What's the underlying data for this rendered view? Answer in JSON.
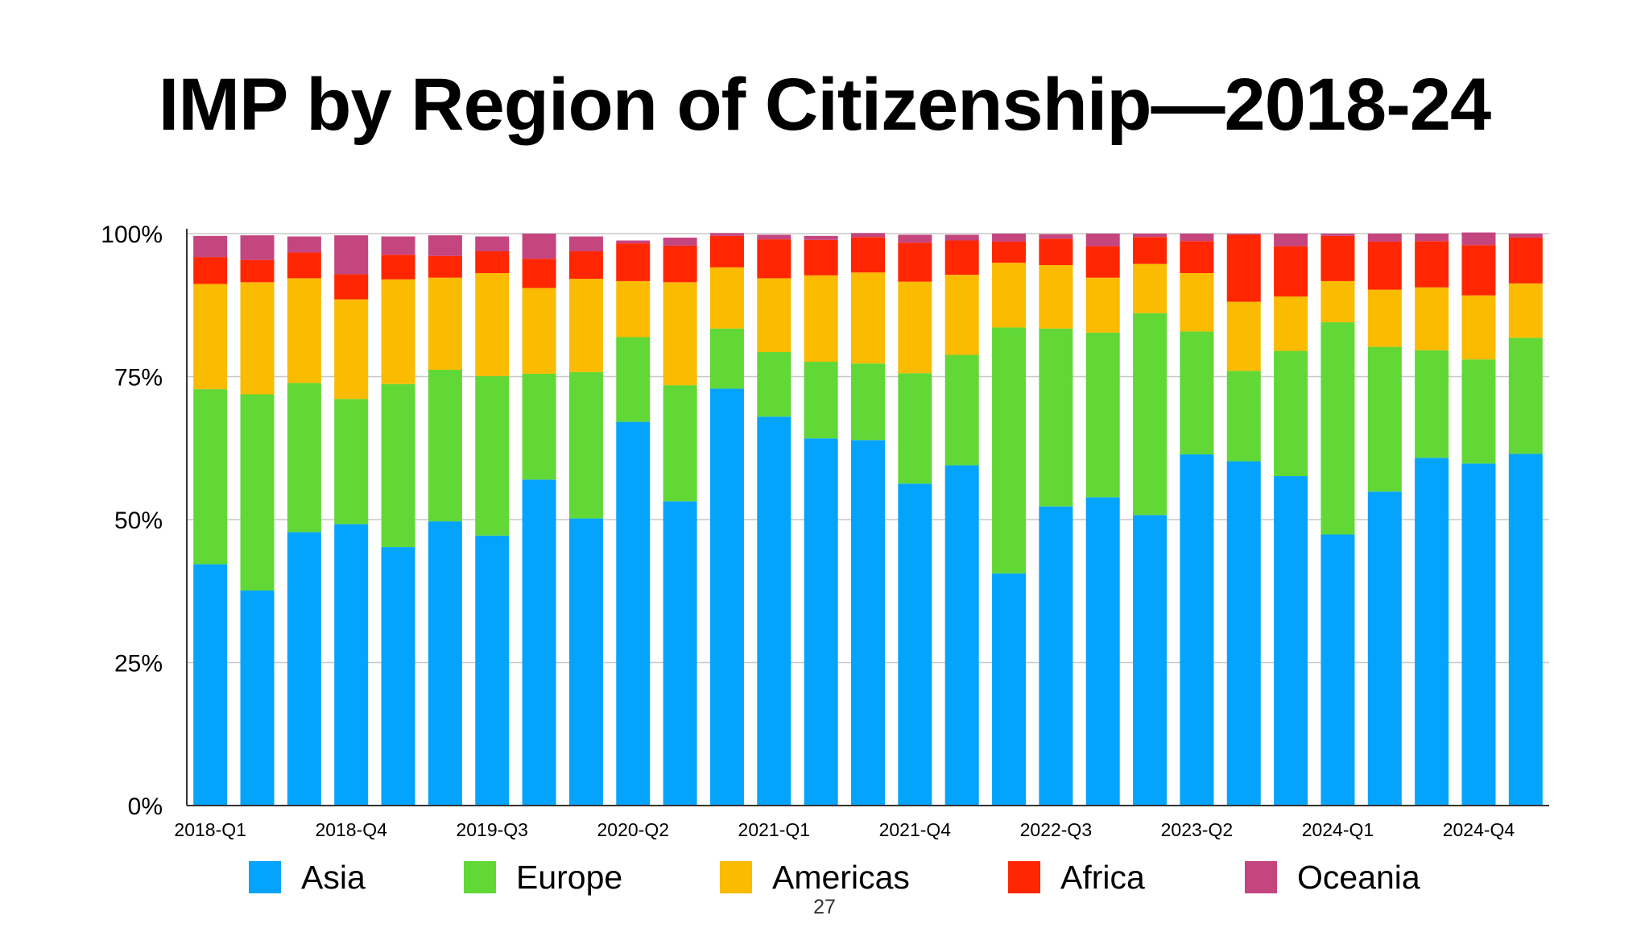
{
  "slide": {
    "title": "IMP by Region of Citizenship—2018-24",
    "page_number": "27"
  },
  "chart_data": {
    "type": "bar",
    "stacked": true,
    "title": "IMP by Region of Citizenship—2018-24",
    "xlabel": "",
    "ylabel": "",
    "ylim": [
      0,
      100
    ],
    "y_ticks": [
      "0%",
      "25%",
      "50%",
      "75%",
      "100%"
    ],
    "grid": true,
    "legend_position": "bottom",
    "categories": [
      "2018-Q1",
      "2018-Q2",
      "2018-Q3",
      "2018-Q4",
      "2019-Q1",
      "2019-Q2",
      "2019-Q3",
      "2019-Q4",
      "2020-Q1",
      "2020-Q2",
      "2020-Q3",
      "2020-Q4",
      "2021-Q1",
      "2021-Q2",
      "2021-Q3",
      "2021-Q4",
      "2022-Q1",
      "2022-Q2",
      "2022-Q3",
      "2022-Q4",
      "2023-Q1",
      "2023-Q2",
      "2023-Q3",
      "2023-Q4",
      "2024-Q1",
      "2024-Q2",
      "2024-Q3",
      "2024-Q4",
      "2025-Q1"
    ],
    "x_tick_labels": [
      "2018-Q1",
      "2018-Q4",
      "2019-Q3",
      "2020-Q2",
      "2021-Q1",
      "2021-Q4",
      "2022-Q3",
      "2023-Q2",
      "2024-Q1",
      "2024-Q4"
    ],
    "series": [
      {
        "name": "Asia",
        "color": "#05A4FC",
        "values": [
          42.2,
          37.6,
          47.8,
          49.2,
          45.2,
          49.7,
          47.2,
          57.0,
          50.2,
          67.1,
          53.2,
          72.9,
          68.0,
          64.2,
          63.9,
          56.3,
          59.5,
          40.6,
          52.3,
          53.9,
          50.8,
          61.4,
          60.2,
          57.6,
          47.4,
          54.9,
          60.8,
          59.8,
          61.5
        ]
      },
      {
        "name": "Europe",
        "color": "#62D836",
        "values": [
          30.6,
          34.3,
          26.1,
          21.9,
          28.5,
          26.5,
          27.9,
          18.5,
          25.6,
          14.8,
          20.3,
          10.5,
          11.3,
          13.4,
          13.4,
          19.3,
          19.3,
          43.0,
          31.1,
          28.8,
          35.3,
          21.5,
          15.8,
          21.9,
          37.1,
          25.3,
          18.8,
          18.2,
          20.3
        ]
      },
      {
        "name": "Americas",
        "color": "#FABB00",
        "values": [
          18.4,
          19.6,
          18.3,
          17.4,
          18.3,
          16.1,
          18.0,
          15.0,
          16.3,
          9.8,
          18.0,
          10.7,
          12.9,
          15.1,
          15.9,
          16.0,
          14.0,
          11.3,
          11.1,
          9.6,
          8.6,
          10.2,
          12.1,
          9.5,
          7.2,
          10.0,
          11.0,
          11.2,
          9.5
        ]
      },
      {
        "name": "Africa",
        "color": "#FF2600",
        "values": [
          4.7,
          3.9,
          4.5,
          4.4,
          4.3,
          3.8,
          3.8,
          5.1,
          4.8,
          6.6,
          6.4,
          5.5,
          6.8,
          6.2,
          6.2,
          6.8,
          6.0,
          3.7,
          4.6,
          5.5,
          4.7,
          5.6,
          11.7,
          8.8,
          7.9,
          8.4,
          8.1,
          8.8,
          8.0
        ]
      },
      {
        "name": "Oceania",
        "color": "#C5457F",
        "values": [
          3.7,
          4.3,
          2.8,
          6.8,
          3.2,
          3.6,
          2.6,
          4.4,
          2.6,
          0.5,
          1.4,
          0.5,
          0.8,
          0.7,
          0.7,
          1.4,
          1.0,
          1.4,
          0.8,
          2.2,
          0.6,
          1.3,
          0.2,
          2.2,
          0.4,
          1.4,
          1.3,
          2.2,
          0.7
        ]
      }
    ]
  }
}
